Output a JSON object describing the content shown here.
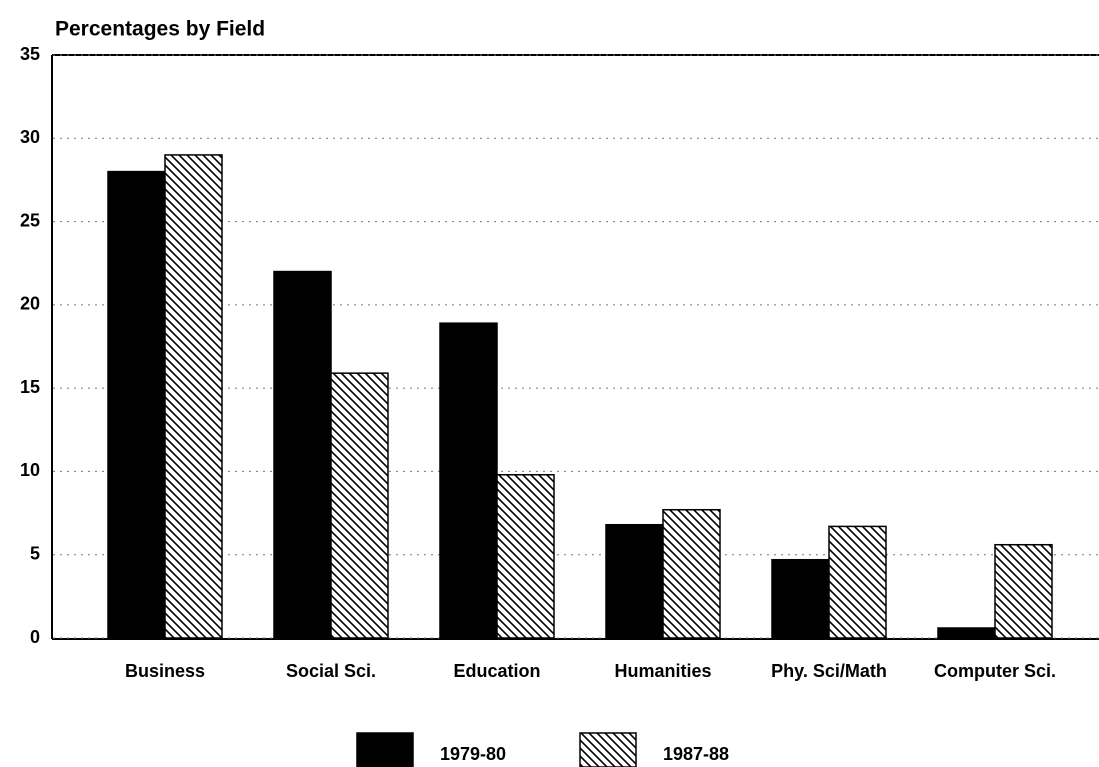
{
  "chart_data": {
    "type": "bar",
    "title": "Percentages by Field",
    "categories": [
      "Business",
      "Social Sci.",
      "Education",
      "Humanities",
      "Phy. Sci/Math",
      "Computer Sci."
    ],
    "series": [
      {
        "name": "1979-80",
        "color": "#000000",
        "hatch": false,
        "values": [
          28,
          22,
          18.9,
          6.8,
          4.7,
          0.6
        ]
      },
      {
        "name": "1987-88",
        "color": "#000000",
        "hatch": true,
        "values": [
          29,
          15.9,
          9.8,
          7.7,
          6.7,
          5.6
        ]
      }
    ],
    "ylim": [
      0,
      35
    ],
    "yticks": [
      0,
      5,
      10,
      15,
      20,
      25,
      30,
      35
    ],
    "grid": true,
    "legend": "bottom"
  }
}
